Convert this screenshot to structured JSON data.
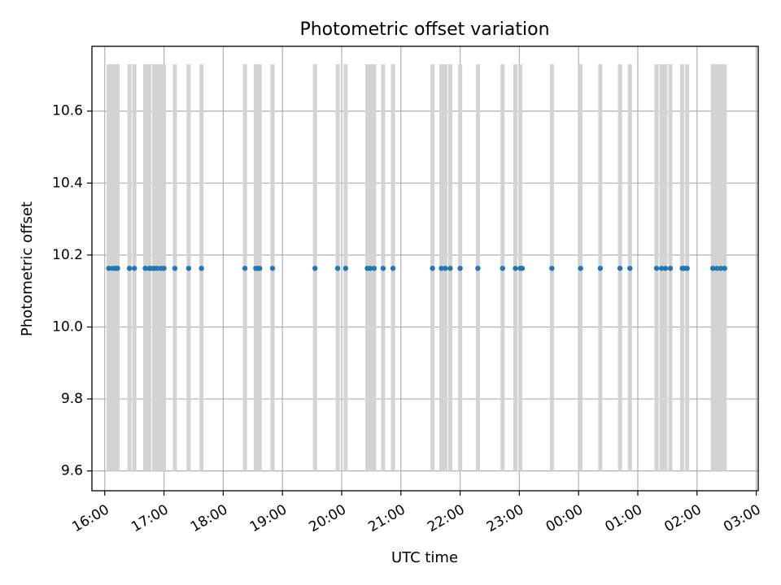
{
  "chart_data": {
    "type": "scatter",
    "title": "Photometric offset variation",
    "xlabel": "UTC time",
    "ylabel": "Photometric offset",
    "grid": true,
    "x_axis": {
      "type": "time",
      "range": [
        "15:47",
        "03:02"
      ],
      "ticks": [
        {
          "time": "16:00",
          "label": "16:00"
        },
        {
          "time": "17:00",
          "label": "17:00"
        },
        {
          "time": "18:00",
          "label": "18:00"
        },
        {
          "time": "19:00",
          "label": "19:00"
        },
        {
          "time": "20:00",
          "label": "20:00"
        },
        {
          "time": "21:00",
          "label": "21:00"
        },
        {
          "time": "22:00",
          "label": "22:00"
        },
        {
          "time": "23:00",
          "label": "23:00"
        },
        {
          "time": "00:00",
          "label": "00:00"
        },
        {
          "time": "01:00",
          "label": "01:00"
        },
        {
          "time": "02:00",
          "label": "02:00"
        },
        {
          "time": "03:00",
          "label": "03:00"
        }
      ]
    },
    "y_axis": {
      "range": [
        9.545,
        10.78
      ],
      "ticks": [
        {
          "value": 9.6,
          "label": "9.6"
        },
        {
          "value": 9.8,
          "label": "9.8"
        },
        {
          "value": 10.0,
          "label": "10.0"
        },
        {
          "value": 10.2,
          "label": "10.2"
        },
        {
          "value": 10.4,
          "label": "10.4"
        },
        {
          "value": 10.6,
          "label": "10.6"
        }
      ]
    },
    "colors": {
      "points": "#1f77b4",
      "bars": "#d3d3d3",
      "grid": "#b0b0b0"
    },
    "range_bars": {
      "low": 9.6,
      "high": 10.73,
      "times": [
        "16:04",
        "16:08",
        "16:11",
        "16:13",
        "16:25",
        "16:30",
        "16:41",
        "16:45",
        "16:50",
        "16:53",
        "16:57",
        "17:00",
        "17:11",
        "17:25",
        "17:38",
        "18:22",
        "18:33",
        "18:37",
        "18:50",
        "19:33",
        "19:56",
        "20:04",
        "20:26",
        "20:29",
        "20:33",
        "20:42",
        "20:52",
        "21:32",
        "21:41",
        "21:45",
        "21:50",
        "22:00",
        "22:18",
        "22:43",
        "22:56",
        "23:01",
        "23:33",
        "00:02",
        "00:22",
        "00:42",
        "00:52",
        "01:19",
        "01:24",
        "01:28",
        "01:33",
        "01:45",
        "01:50",
        "02:16",
        "02:20",
        "02:24",
        "02:28"
      ]
    },
    "series": [
      {
        "marker": "dot",
        "x": [
          "16:04",
          "16:08",
          "16:11",
          "16:13",
          "16:25",
          "16:30",
          "16:41",
          "16:45",
          "16:47",
          "16:50",
          "16:53",
          "16:57",
          "17:00",
          "17:11",
          "17:25",
          "17:38",
          "18:22",
          "18:33",
          "18:35",
          "18:37",
          "18:50",
          "19:33",
          "19:56",
          "20:04",
          "20:26",
          "20:29",
          "20:33",
          "20:42",
          "20:52",
          "21:32",
          "21:41",
          "21:45",
          "21:50",
          "22:00",
          "22:18",
          "22:43",
          "22:56",
          "23:01",
          "23:03",
          "23:33",
          "00:02",
          "00:22",
          "00:42",
          "00:52",
          "01:19",
          "01:24",
          "01:28",
          "01:33",
          "01:45",
          "01:47",
          "01:50",
          "02:16",
          "02:20",
          "02:24",
          "02:28"
        ],
        "y": [
          10.163,
          10.163,
          10.163,
          10.163,
          10.163,
          10.163,
          10.163,
          10.163,
          10.163,
          10.163,
          10.163,
          10.163,
          10.163,
          10.163,
          10.163,
          10.163,
          10.163,
          10.163,
          10.163,
          10.163,
          10.163,
          10.163,
          10.163,
          10.163,
          10.163,
          10.163,
          10.163,
          10.163,
          10.163,
          10.163,
          10.163,
          10.163,
          10.163,
          10.163,
          10.163,
          10.163,
          10.163,
          10.163,
          10.163,
          10.163,
          10.163,
          10.163,
          10.163,
          10.163,
          10.163,
          10.163,
          10.163,
          10.163,
          10.163,
          10.163,
          10.163,
          10.163,
          10.163,
          10.163,
          10.163
        ]
      }
    ]
  }
}
